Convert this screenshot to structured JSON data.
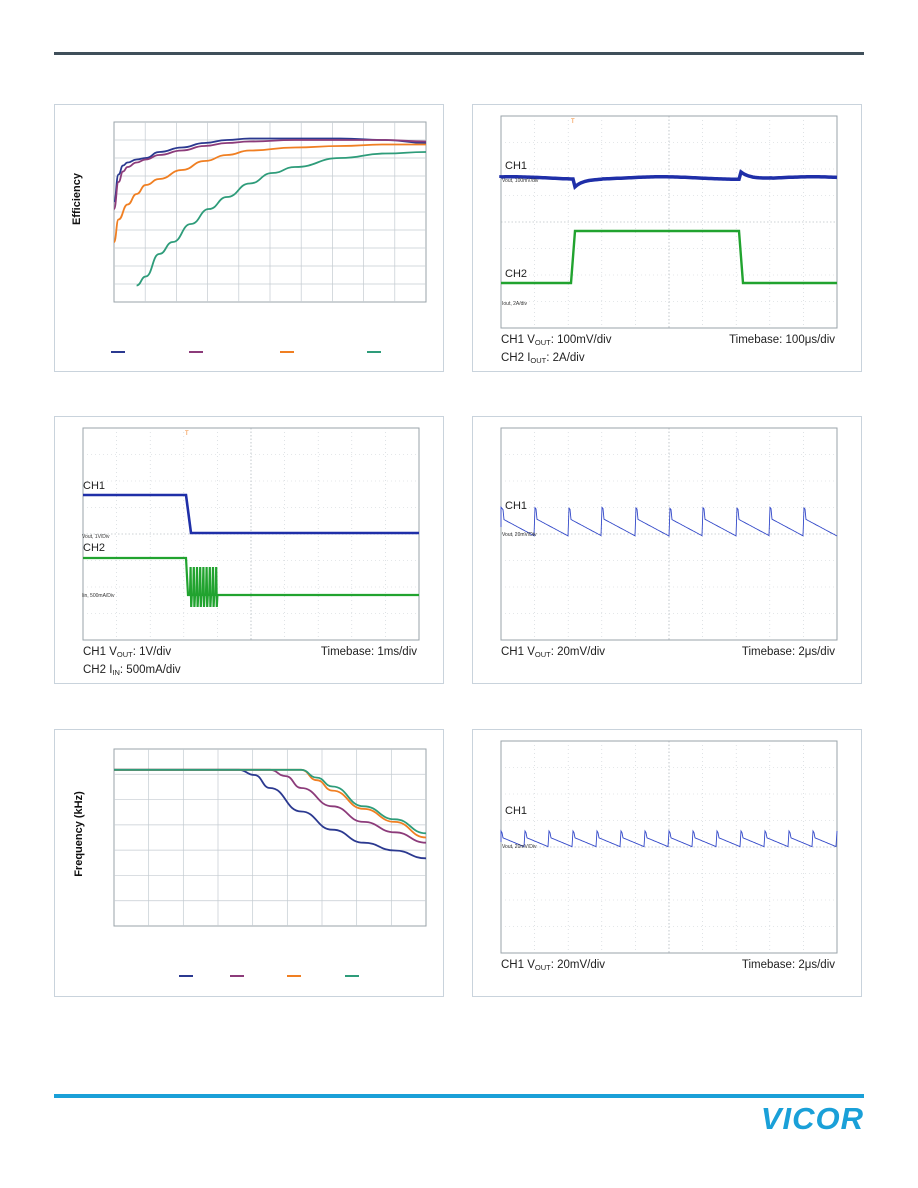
{
  "panel1": {
    "ylabel": "Efficiency",
    "chart_data": {
      "type": "line",
      "ylabel": "Efficiency",
      "grid": true,
      "legend": "bottom",
      "series": [
        {
          "color": "#2b3990",
          "points": [
            [
              0,
              67
            ],
            [
              1,
              85
            ],
            [
              2,
              91
            ],
            [
              3,
              93
            ],
            [
              5,
              95
            ],
            [
              7,
              96
            ],
            [
              10,
              100
            ],
            [
              15,
              103
            ],
            [
              20,
              106
            ],
            [
              25,
              108
            ],
            [
              30,
              109
            ],
            [
              40,
              109
            ],
            [
              50,
              109
            ],
            [
              60,
              108
            ],
            [
              69,
              106
            ]
          ]
        },
        {
          "color": "#8c3b7a",
          "points": [
            [
              0,
              62
            ],
            [
              1,
              80
            ],
            [
              2,
              87
            ],
            [
              3,
              90
            ],
            [
              5,
              93
            ],
            [
              7,
              95
            ],
            [
              10,
              98
            ],
            [
              15,
              101
            ],
            [
              20,
              104
            ],
            [
              25,
              106
            ],
            [
              30,
              107
            ],
            [
              40,
              108
            ],
            [
              50,
              108
            ],
            [
              60,
              108
            ],
            [
              69,
              107
            ]
          ]
        },
        {
          "color": "#f07f22",
          "points": [
            [
              0,
              40
            ],
            [
              1,
              55
            ],
            [
              3,
              65
            ],
            [
              5,
              72
            ],
            [
              7,
              78
            ],
            [
              10,
              82
            ],
            [
              15,
              88
            ],
            [
              20,
              94
            ],
            [
              25,
              98
            ],
            [
              30,
              101
            ],
            [
              40,
              103
            ],
            [
              50,
              104
            ],
            [
              60,
              105
            ],
            [
              69,
              105
            ]
          ]
        },
        {
          "color": "#2e9c7a",
          "points": [
            [
              5,
              11
            ],
            [
              7,
              17
            ],
            [
              10,
              32
            ],
            [
              13,
              40
            ],
            [
              17,
              52
            ],
            [
              21,
              62
            ],
            [
              25,
              70
            ],
            [
              30,
              79
            ],
            [
              35,
              86
            ],
            [
              40,
              90
            ],
            [
              50,
              96
            ],
            [
              60,
              99
            ],
            [
              69,
              100
            ]
          ]
        }
      ]
    }
  },
  "panel2": {
    "ch1": "CH1",
    "ch1_small": "Vout, 100mV/div",
    "ch2": "CH2",
    "ch2_small": "Iout, 2A/div",
    "cap1_pre": "CH1 V",
    "cap1_sub": "OUT",
    "cap1_post": ": 100mV/div",
    "cap2_pre": "CH2 I",
    "cap2_sub": "OUT",
    "cap2_post": ": 2A/div",
    "timebase": "Timebase: 100μs/div"
  },
  "panel3": {
    "ch1": "CH1",
    "ch1_small": "Vout, 1V/Div",
    "ch2": "CH2",
    "ch2_small": "Iin, 500mA/Div",
    "cap1_pre": "CH1 V",
    "cap1_sub": "OUT",
    "cap1_post": ": 1V/div",
    "cap2_pre": "CH2 I",
    "cap2_sub": "IN",
    "cap2_post": ": 500mA/div",
    "timebase": "Timebase: 1ms/div"
  },
  "panel4": {
    "ch1": "CH1",
    "ch1_small": "Vout, 20mV/Div",
    "cap1_pre": "CH1 V",
    "cap1_sub": "OUT",
    "cap1_post": ": 20mV/div",
    "timebase": "Timebase: 2μs/div"
  },
  "panel5": {
    "ylabel": "Frequency (kHz)",
    "chart_data": {
      "type": "line",
      "ylabel": "Frequency (kHz)",
      "grid": true,
      "legend": "bottom",
      "series": [
        {
          "color": "#2b3990",
          "points": [
            [
              0,
              600
            ],
            [
              4,
              600
            ],
            [
              4.5,
              590
            ],
            [
              5,
              565
            ],
            [
              6,
              520
            ],
            [
              7,
              485
            ],
            [
              8,
              460
            ],
            [
              9,
              445
            ],
            [
              10,
              430
            ]
          ]
        },
        {
          "color": "#8c3b7a",
          "points": [
            [
              0,
              600
            ],
            [
              5,
              600
            ],
            [
              5.5,
              588
            ],
            [
              6,
              565
            ],
            [
              7,
              530
            ],
            [
              8,
              500
            ],
            [
              9,
              480
            ],
            [
              10,
              460
            ]
          ]
        },
        {
          "color": "#f07f22",
          "points": [
            [
              0,
              600
            ],
            [
              6,
              600
            ],
            [
              6.5,
              580
            ],
            [
              7,
              560
            ],
            [
              8,
              525
            ],
            [
              9,
              500
            ],
            [
              10,
              470
            ]
          ]
        },
        {
          "color": "#2e9c7a",
          "points": [
            [
              0,
              600
            ],
            [
              6,
              600
            ],
            [
              6.5,
              585
            ],
            [
              7,
              568
            ],
            [
              8,
              530
            ],
            [
              9,
              505
            ],
            [
              10,
              478
            ]
          ]
        }
      ]
    }
  },
  "panel6": {
    "ch1": "CH1",
    "ch1_small": "Vout, 20mV/Div",
    "cap1_pre": "CH1 V",
    "cap1_sub": "OUT",
    "cap1_post": ": 20mV/div",
    "timebase": "Timebase: 2μs/div"
  },
  "logo": {
    "text": "VICOR",
    "color": "#1aa0d8"
  }
}
